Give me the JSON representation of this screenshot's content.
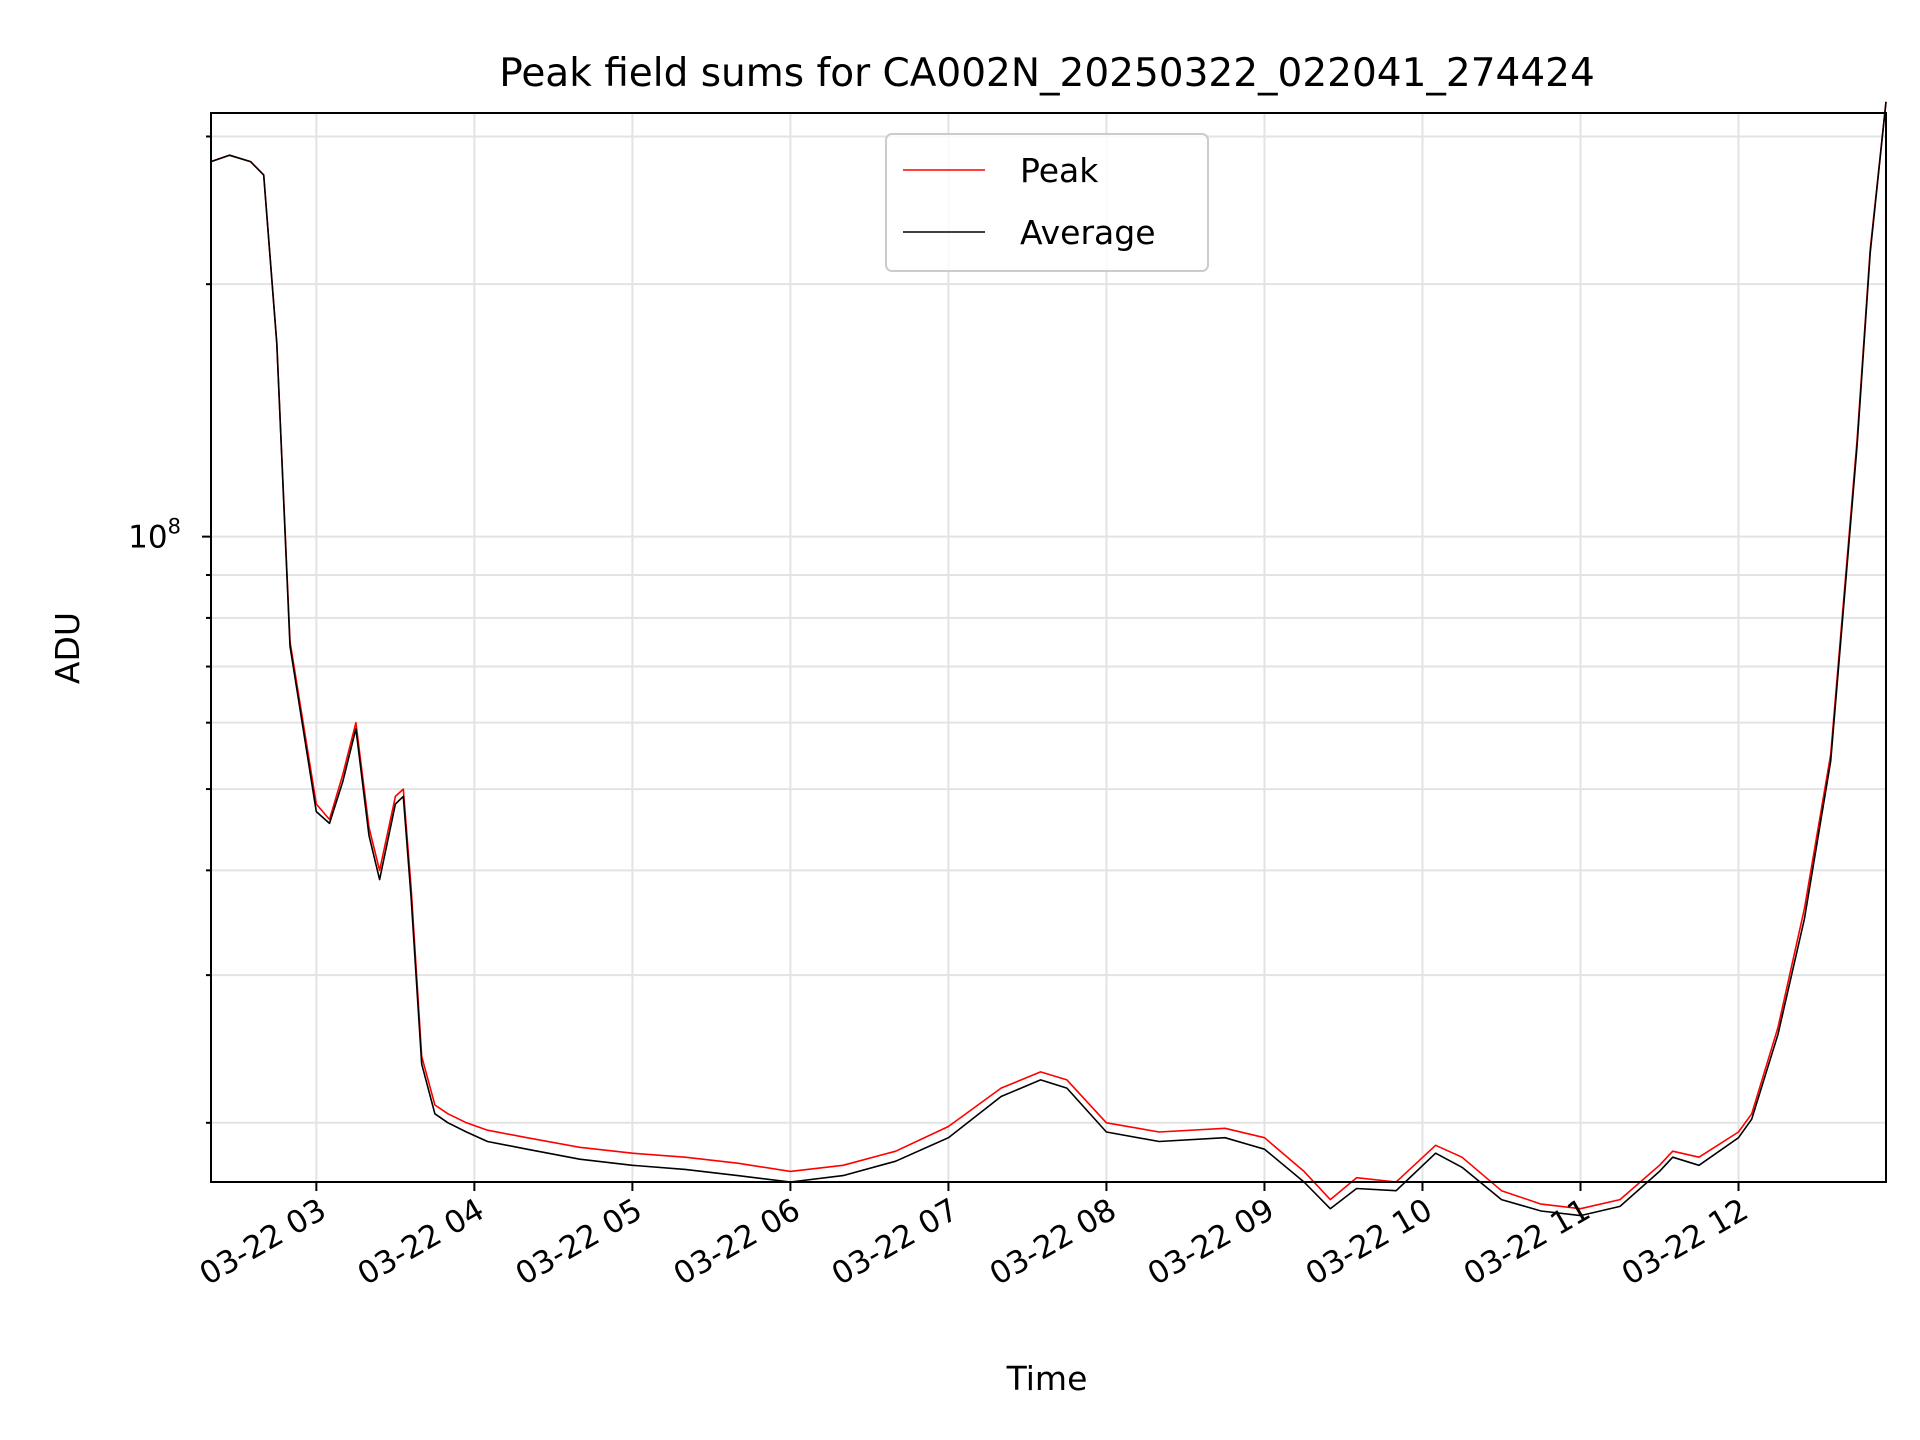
{
  "chart_data": {
    "type": "line",
    "title": "Peak field sums for CA002N_20250322_022041_274424",
    "xlabel": "Time",
    "ylabel": "ADU",
    "yscale": "log",
    "xlim": [
      "03-22 02:20",
      "03-22 12:56"
    ],
    "ylim": [
      17000000.0,
      320000000.0
    ],
    "x_ticks": [
      "03-22 03",
      "03-22 04",
      "03-22 05",
      "03-22 06",
      "03-22 07",
      "03-22 08",
      "03-22 09",
      "03-22 10",
      "03-22 11",
      "03-22 12"
    ],
    "y_major_ticks": [
      {
        "base": "10",
        "exp": "8",
        "value": 100000000.0
      }
    ],
    "y_minor_ticks": [
      20000000.0,
      30000000.0,
      40000000.0,
      50000000.0,
      60000000.0,
      70000000.0,
      80000000.0,
      90000000.0,
      200000000.0,
      300000000.0
    ],
    "grid": true,
    "legend_position": "upper center",
    "x": [
      "03-22 02:20",
      "03-22 02:27",
      "03-22 02:35",
      "03-22 02:40",
      "03-22 02:45",
      "03-22 02:50",
      "03-22 03:00",
      "03-22 03:05",
      "03-22 03:10",
      "03-22 03:15",
      "03-22 03:20",
      "03-22 03:24",
      "03-22 03:30",
      "03-22 03:33",
      "03-22 03:36",
      "03-22 03:40",
      "03-22 03:45",
      "03-22 03:50",
      "03-22 03:57",
      "03-22 04:05",
      "03-22 04:20",
      "03-22 04:40",
      "03-22 05:00",
      "03-22 05:20",
      "03-22 05:40",
      "03-22 06:00",
      "03-22 06:20",
      "03-22 06:40",
      "03-22 07:00",
      "03-22 07:20",
      "03-22 07:35",
      "03-22 07:45",
      "03-22 08:00",
      "03-22 08:20",
      "03-22 08:45",
      "03-22 09:00",
      "03-22 09:15",
      "03-22 09:25",
      "03-22 09:35",
      "03-22 09:50",
      "03-22 10:05",
      "03-22 10:15",
      "03-22 10:30",
      "03-22 10:45",
      "03-22 11:00",
      "03-22 11:15",
      "03-22 11:30",
      "03-22 11:35",
      "03-22 11:45",
      "03-22 12:00",
      "03-22 12:05",
      "03-22 12:15",
      "03-22 12:25",
      "03-22 12:35",
      "03-22 12:45",
      "03-22 12:50",
      "03-22 12:56"
    ],
    "series": [
      {
        "name": "Peak",
        "color": "#ff0000",
        "values": [
          280000000.0,
          285000000.0,
          280000000.0,
          270000000.0,
          170000000.0,
          75000000.0,
          48000000.0,
          46000000.0,
          52000000.0,
          60000000.0,
          45000000.0,
          40000000.0,
          49000000.0,
          50000000.0,
          38000000.0,
          24000000.0,
          21000000.0,
          20500000.0,
          20000000.0,
          19600000.0,
          19200000.0,
          18700000.0,
          18400000.0,
          18200000.0,
          17900000.0,
          17500000.0,
          17800000.0,
          18500000.0,
          19800000.0,
          22000000.0,
          23000000.0,
          22500000.0,
          20000000.0,
          19500000.0,
          19700000.0,
          19200000.0,
          17500000.0,
          16200000.0,
          17200000.0,
          17000000.0,
          18800000.0,
          18200000.0,
          16600000.0,
          16000000.0,
          15800000.0,
          16200000.0,
          17800000.0,
          18500000.0,
          18200000.0,
          19500000.0,
          20500000.0,
          26000000.0,
          36000000.0,
          55000000.0,
          130000000.0,
          220000000.0,
          330000000.0
        ]
      },
      {
        "name": "Average",
        "color": "#000000",
        "values": [
          280000000.0,
          285000000.0,
          280000000.0,
          270000000.0,
          170000000.0,
          74000000.0,
          47000000.0,
          45500000.0,
          51000000.0,
          59000000.0,
          44000000.0,
          39000000.0,
          48000000.0,
          49000000.0,
          37000000.0,
          23500000.0,
          20500000.0,
          20000000.0,
          19500000.0,
          19000000.0,
          18600000.0,
          18100000.0,
          17800000.0,
          17600000.0,
          17300000.0,
          17000000.0,
          17300000.0,
          18000000.0,
          19200000.0,
          21500000.0,
          22500000.0,
          22000000.0,
          19500000.0,
          19000000.0,
          19200000.0,
          18600000.0,
          17000000.0,
          15800000.0,
          16700000.0,
          16600000.0,
          18400000.0,
          17700000.0,
          16200000.0,
          15700000.0,
          15500000.0,
          15900000.0,
          17500000.0,
          18200000.0,
          17800000.0,
          19200000.0,
          20200000.0,
          25500000.0,
          35000000.0,
          54000000.0,
          128000000.0,
          218000000.0,
          330000000.0
        ]
      }
    ]
  }
}
